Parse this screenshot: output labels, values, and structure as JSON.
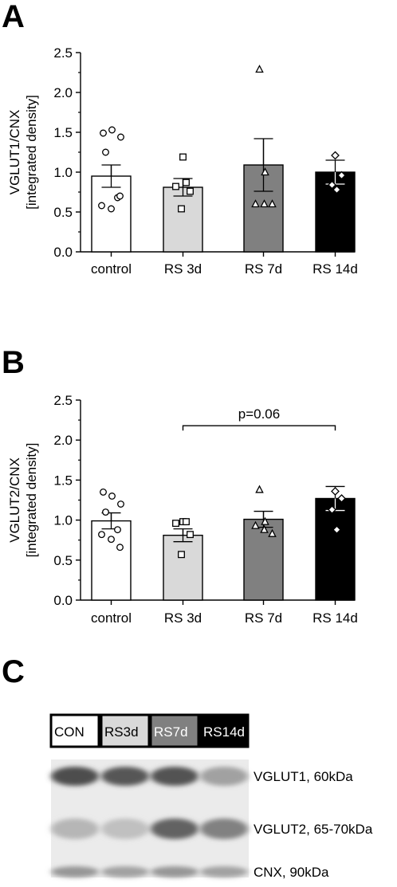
{
  "panel_labels": {
    "a": "A",
    "b": "B",
    "c": "C"
  },
  "colors": {
    "control": "#ffffff",
    "rs3d": "#d9d9d9",
    "rs7d": "#808080",
    "rs14d": "#000000"
  },
  "chart_data": [
    {
      "type": "bar",
      "panel": "A",
      "ylabel_line1": "VGLUT1/CNX",
      "ylabel_line2": "[integrated density]",
      "ylim": [
        0,
        2.5
      ],
      "yticks": [
        "0.0",
        "0.5",
        "1.0",
        "1.5",
        "2.0",
        "2.5"
      ],
      "categories": [
        "control",
        "RS 3d",
        "RS 7d",
        "RS 14d"
      ],
      "values": [
        0.95,
        0.81,
        1.09,
        1.0
      ],
      "sem": [
        0.14,
        0.11,
        0.33,
        0.15
      ],
      "points": [
        [
          1.49,
          1.53,
          1.44,
          1.25,
          0.68,
          0.58,
          0.54,
          0.7
        ],
        [
          1.19,
          0.87,
          0.82,
          0.76,
          0.54
        ],
        [
          2.29,
          1.0,
          0.6,
          0.6,
          0.6
        ],
        [
          1.21,
          0.96,
          0.84,
          0.78
        ]
      ]
    },
    {
      "type": "bar",
      "panel": "B",
      "ylabel_line1": "VGLUT2/CNX",
      "ylabel_line2": "[integrated density]",
      "ylim": [
        0,
        2.5
      ],
      "yticks": [
        "0.0",
        "0.5",
        "1.0",
        "1.5",
        "2.0",
        "2.5"
      ],
      "categories": [
        "control",
        "RS 3d",
        "RS 7d",
        "RS 14d"
      ],
      "values": [
        0.99,
        0.81,
        1.01,
        1.27
      ],
      "sem": [
        0.1,
        0.08,
        0.1,
        0.15
      ],
      "points": [
        [
          1.35,
          1.3,
          1.2,
          1.1,
          0.88,
          0.82,
          0.76,
          0.66
        ],
        [
          0.98,
          0.98,
          0.96,
          0.82,
          0.57
        ],
        [
          1.38,
          0.98,
          0.93,
          0.88,
          0.83
        ],
        [
          1.36,
          1.27,
          1.13,
          0.88
        ]
      ],
      "comparison": {
        "from": "RS 3d",
        "to": "RS 14d",
        "label": "p=0.06"
      }
    }
  ],
  "blot": {
    "lanes": [
      "CON",
      "RS3d",
      "RS7d",
      "RS14d"
    ],
    "bands": [
      {
        "label": "VGLUT1, 60kDa",
        "intensity": [
          0.85,
          0.8,
          0.82,
          0.45
        ]
      },
      {
        "label": "VGLUT2, 65-70kDa",
        "intensity": [
          0.35,
          0.3,
          0.75,
          0.6
        ]
      },
      {
        "label": "CNX, 90kDa",
        "intensity": [
          0.5,
          0.45,
          0.5,
          0.45
        ]
      }
    ]
  }
}
